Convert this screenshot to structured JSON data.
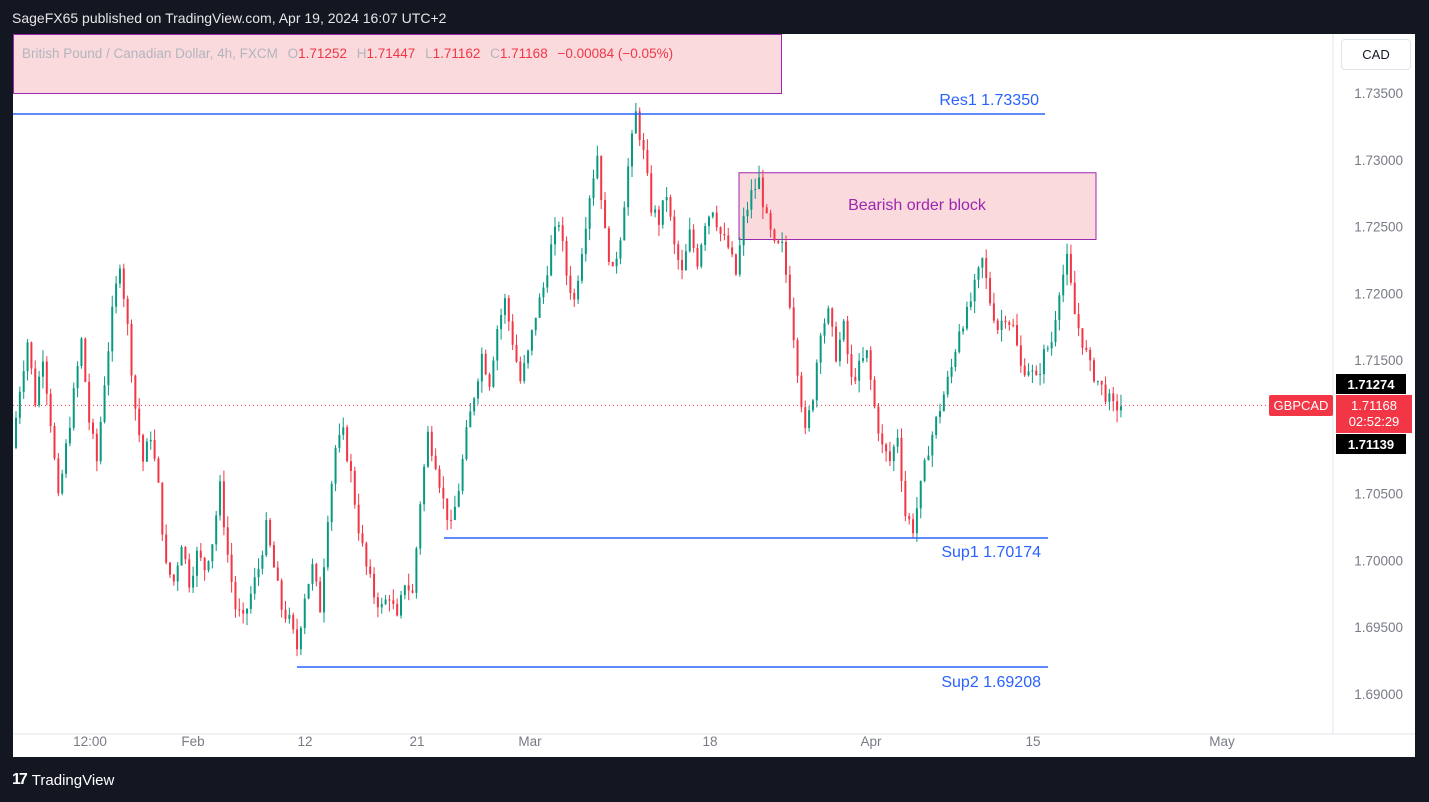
{
  "header": {
    "published_line": "SageFX65 published on TradingView.com, Apr 19, 2024 16:07 UTC+2"
  },
  "legend": {
    "symbol_name": "British Pound / Canadian Dollar, 4h, FXCM",
    "open_label": "O",
    "open": "1.71252",
    "high_label": "H",
    "high": "1.71447",
    "low_label": "L",
    "low": "1.71162",
    "close_label": "C",
    "close": "1.71168",
    "change": "−0.00084 (−0.05%)"
  },
  "currency_button": "CAD",
  "price_scale": {
    "ticks": [
      "1.73500",
      "1.73000",
      "1.72500",
      "1.72000",
      "1.71500",
      "1.70500",
      "1.70000",
      "1.69500",
      "1.69000"
    ],
    "symbol_tag": "GBPCAD",
    "high_tag": "1.71274",
    "price_tag": "1.71168",
    "countdown": "02:52:29",
    "low_tag": "1.71139"
  },
  "time_axis": {
    "ticks": [
      "12:00",
      "Feb",
      "12",
      "21",
      "Mar",
      "18",
      "Apr",
      "15",
      "May"
    ]
  },
  "annotations": {
    "res1": "Res1 1.73350",
    "sup1": "Sup1 1.70174",
    "sup2": "Sup2 1.69208",
    "order_block": "Bearish order block"
  },
  "footer": {
    "brand": "TradingView"
  },
  "colors": {
    "up": "#089981",
    "down": "#f23645",
    "level_line": "#2962ff",
    "zone_fill": "#fadadd",
    "zone_border": "#9c27b0",
    "label_text": "#2962ff",
    "zone_text": "#9c27b0"
  },
  "chart_data": {
    "type": "candlestick",
    "symbol": "GBPCAD",
    "timeframe": "4h",
    "ylim": [
      1.688,
      1.7375
    ],
    "levels": [
      {
        "name": "Res1",
        "value": 1.7335
      },
      {
        "name": "Sup1",
        "value": 1.70174
      },
      {
        "name": "Sup2",
        "value": 1.69208
      }
    ],
    "zones": [
      {
        "name": "Bearish order block",
        "top": 1.7291,
        "bottom": 1.7241
      }
    ],
    "last_price": 1.71168,
    "price_path": [
      1.7085,
      1.713,
      1.7165,
      1.712,
      1.7155,
      1.7105,
      1.7045,
      1.7085,
      1.7125,
      1.7165,
      1.7105,
      1.7075,
      1.7135,
      1.7185,
      1.7225,
      1.7175,
      1.7115,
      1.7075,
      1.7095,
      1.7055,
      1.6995,
      1.6985,
      1.7015,
      1.6985,
      1.7005,
      1.6995,
      1.7015,
      1.7055,
      1.7005,
      1.6965,
      1.6955,
      1.6975,
      1.6995,
      1.7025,
      1.6995,
      1.6965,
      1.6955,
      1.6935,
      1.6975,
      1.6995,
      1.6965,
      1.7035,
      1.7085,
      1.7095,
      1.7065,
      1.7025,
      1.6995,
      1.6975,
      1.6965,
      1.6975,
      1.6955,
      1.6985,
      1.6975,
      1.7045,
      1.7095,
      1.7075,
      1.7045,
      1.7025,
      1.7055,
      1.7095,
      1.7125,
      1.7155,
      1.7135,
      1.7175,
      1.7195,
      1.7165,
      1.7135,
      1.7155,
      1.7185,
      1.7205,
      1.7235,
      1.7255,
      1.7215,
      1.7195,
      1.7235,
      1.7275,
      1.7305,
      1.7245,
      1.7215,
      1.7245,
      1.7295,
      1.7335,
      1.7305,
      1.7265,
      1.7255,
      1.7275,
      1.7235,
      1.7215,
      1.7245,
      1.7225,
      1.7255,
      1.7265,
      1.7245,
      1.7235,
      1.7215,
      1.7255,
      1.7275,
      1.7285,
      1.7255,
      1.7235,
      1.7235,
      1.7195,
      1.7145,
      1.7095,
      1.7125,
      1.7175,
      1.7185,
      1.7155,
      1.7175,
      1.7135,
      1.7145,
      1.7155,
      1.7115,
      1.7085,
      1.7075,
      1.7095,
      1.7035,
      1.7025,
      1.7055,
      1.7085,
      1.7105,
      1.7125,
      1.7145,
      1.7175,
      1.7185,
      1.7205,
      1.7225,
      1.7195,
      1.7175,
      1.7185,
      1.7175,
      1.7145,
      1.7145,
      1.7135,
      1.7155,
      1.7165,
      1.7205,
      1.7225,
      1.7185,
      1.7165,
      1.7145,
      1.7135,
      1.7125,
      1.7115,
      1.7117
    ]
  }
}
